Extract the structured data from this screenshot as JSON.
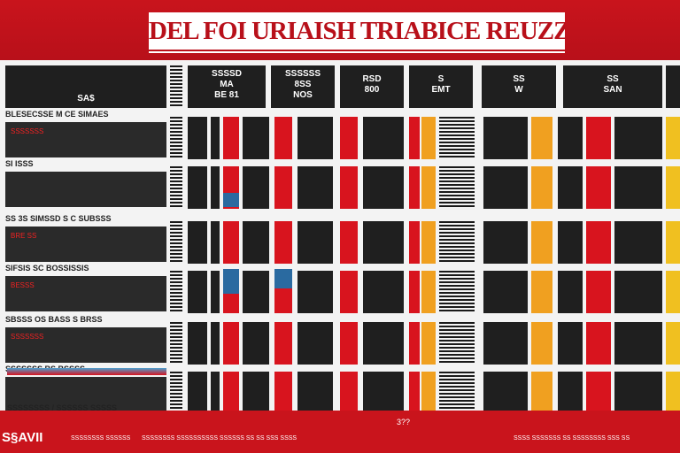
{
  "title": "DEL FOI URIAISH TRIABICE REUZZA",
  "columns": [
    {
      "lines": [
        "SA$"
      ]
    },
    {
      "lines": [
        ""
      ]
    },
    {
      "lines": [
        "SSSSD",
        "MA",
        "BE 81"
      ]
    },
    {
      "lines": [
        "SSSSSS",
        "8SS",
        "NOS"
      ]
    },
    {
      "lines": [
        "RSD",
        "800"
      ]
    },
    {
      "lines": [
        "S",
        "EMT"
      ]
    },
    {
      "lines": [
        "SS",
        "W"
      ]
    },
    {
      "lines": [
        "SS",
        "SAN"
      ]
    },
    {
      "lines": [
        ""
      ]
    }
  ],
  "rows": [
    {
      "label": "BLESECSSE M CE SIMAES",
      "sub": "SSSSSSS"
    },
    {
      "label": "SI ISSS",
      "sub": ""
    },
    {
      "label": "SS 3S SIMSSD S C SUBSSS",
      "sub": "BRE SS"
    },
    {
      "label": "SIFSIS SC BOSSISSIS",
      "sub": "BESSS"
    },
    {
      "label": "SBSSS OS BASS S BRSS",
      "sub": "SSSSSSS"
    },
    {
      "label": "SSSSSSS BS BSSSS",
      "sub": ""
    }
  ],
  "bottom_label": "SSSSSSSS / SSSSSS SSSSS",
  "footer": {
    "brand": "S§AVII",
    "texts": [
      "SSSSSSSS SSSSSS",
      "SSSSSSSS SSSSSSSSSS SSSSSS SS SS SSS SSSS",
      "SSSS SSSSSSS SS SSSSSSSS SSS SS"
    ],
    "mark": "3??"
  }
}
